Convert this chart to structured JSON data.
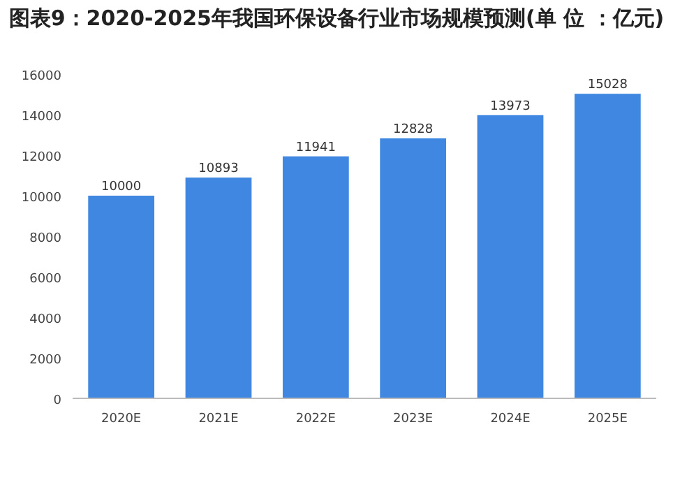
{
  "chart_data": {
    "type": "bar",
    "title": "图表9：2020-2025年我国环保设备行业市场规模预测(单 位 ：亿元)",
    "categories": [
      "2020E",
      "2021E",
      "2022E",
      "2023E",
      "2024E",
      "2025E"
    ],
    "values": [
      10000,
      10893,
      11941,
      12828,
      13973,
      15028
    ],
    "color": "#3f87e0",
    "ylim": [
      0,
      16000
    ],
    "yticks": [
      0,
      2000,
      4000,
      6000,
      8000,
      10000,
      12000,
      14000,
      16000
    ],
    "data_labels": true,
    "grid": false
  }
}
